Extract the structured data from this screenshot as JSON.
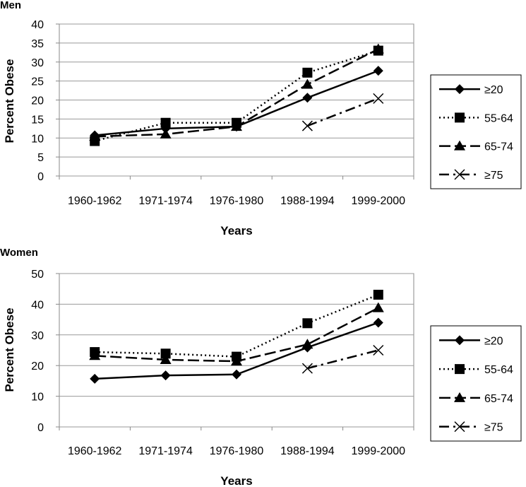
{
  "chart_data": [
    {
      "type": "line",
      "title": "Men",
      "xlabel": "Years",
      "ylabel": "Percent Obese",
      "categories": [
        "1960-1962",
        "1971-1974",
        "1976-1980",
        "1988-1994",
        "1999-2000"
      ],
      "ylim": [
        0,
        40
      ],
      "yticks": [
        0,
        5,
        10,
        15,
        20,
        25,
        30,
        35,
        40
      ],
      "grid": "horizontal",
      "legend_position": "right",
      "series": [
        {
          "name": "≥20",
          "marker": "diamond",
          "line": "solid",
          "values": [
            10.7,
            12.5,
            13.0,
            20.6,
            27.7
          ]
        },
        {
          "name": "55-64",
          "marker": "square",
          "line": "dotted",
          "values": [
            9.2,
            14.0,
            14.0,
            27.2,
            33.0
          ]
        },
        {
          "name": "65-74",
          "marker": "triangle",
          "line": "longdash",
          "values": [
            10.4,
            11.0,
            13.0,
            24.1,
            33.4
          ]
        },
        {
          "name": "≥75",
          "marker": "x",
          "line": "dashdot",
          "values": [
            null,
            null,
            null,
            13.2,
            20.4
          ]
        }
      ]
    },
    {
      "type": "line",
      "title": "Women",
      "xlabel": "Years",
      "ylabel": "Percent Obese",
      "categories": [
        "1960-1962",
        "1971-1974",
        "1976-1980",
        "1988-1994",
        "1999-2000"
      ],
      "ylim": [
        0,
        50
      ],
      "yticks": [
        0,
        10,
        20,
        30,
        40,
        50
      ],
      "grid": "horizontal",
      "legend_position": "right",
      "series": [
        {
          "name": "≥20",
          "marker": "diamond",
          "line": "solid",
          "values": [
            15.7,
            16.8,
            17.1,
            25.9,
            34.0
          ]
        },
        {
          "name": "55-64",
          "marker": "square",
          "line": "dotted",
          "values": [
            24.4,
            23.9,
            22.9,
            33.8,
            43.1
          ]
        },
        {
          "name": "65-74",
          "marker": "triangle",
          "line": "longdash",
          "values": [
            23.2,
            21.9,
            21.4,
            26.9,
            38.8
          ]
        },
        {
          "name": "≥75",
          "marker": "x",
          "line": "dashdot",
          "values": [
            null,
            null,
            null,
            19.1,
            25.0
          ]
        }
      ]
    }
  ]
}
